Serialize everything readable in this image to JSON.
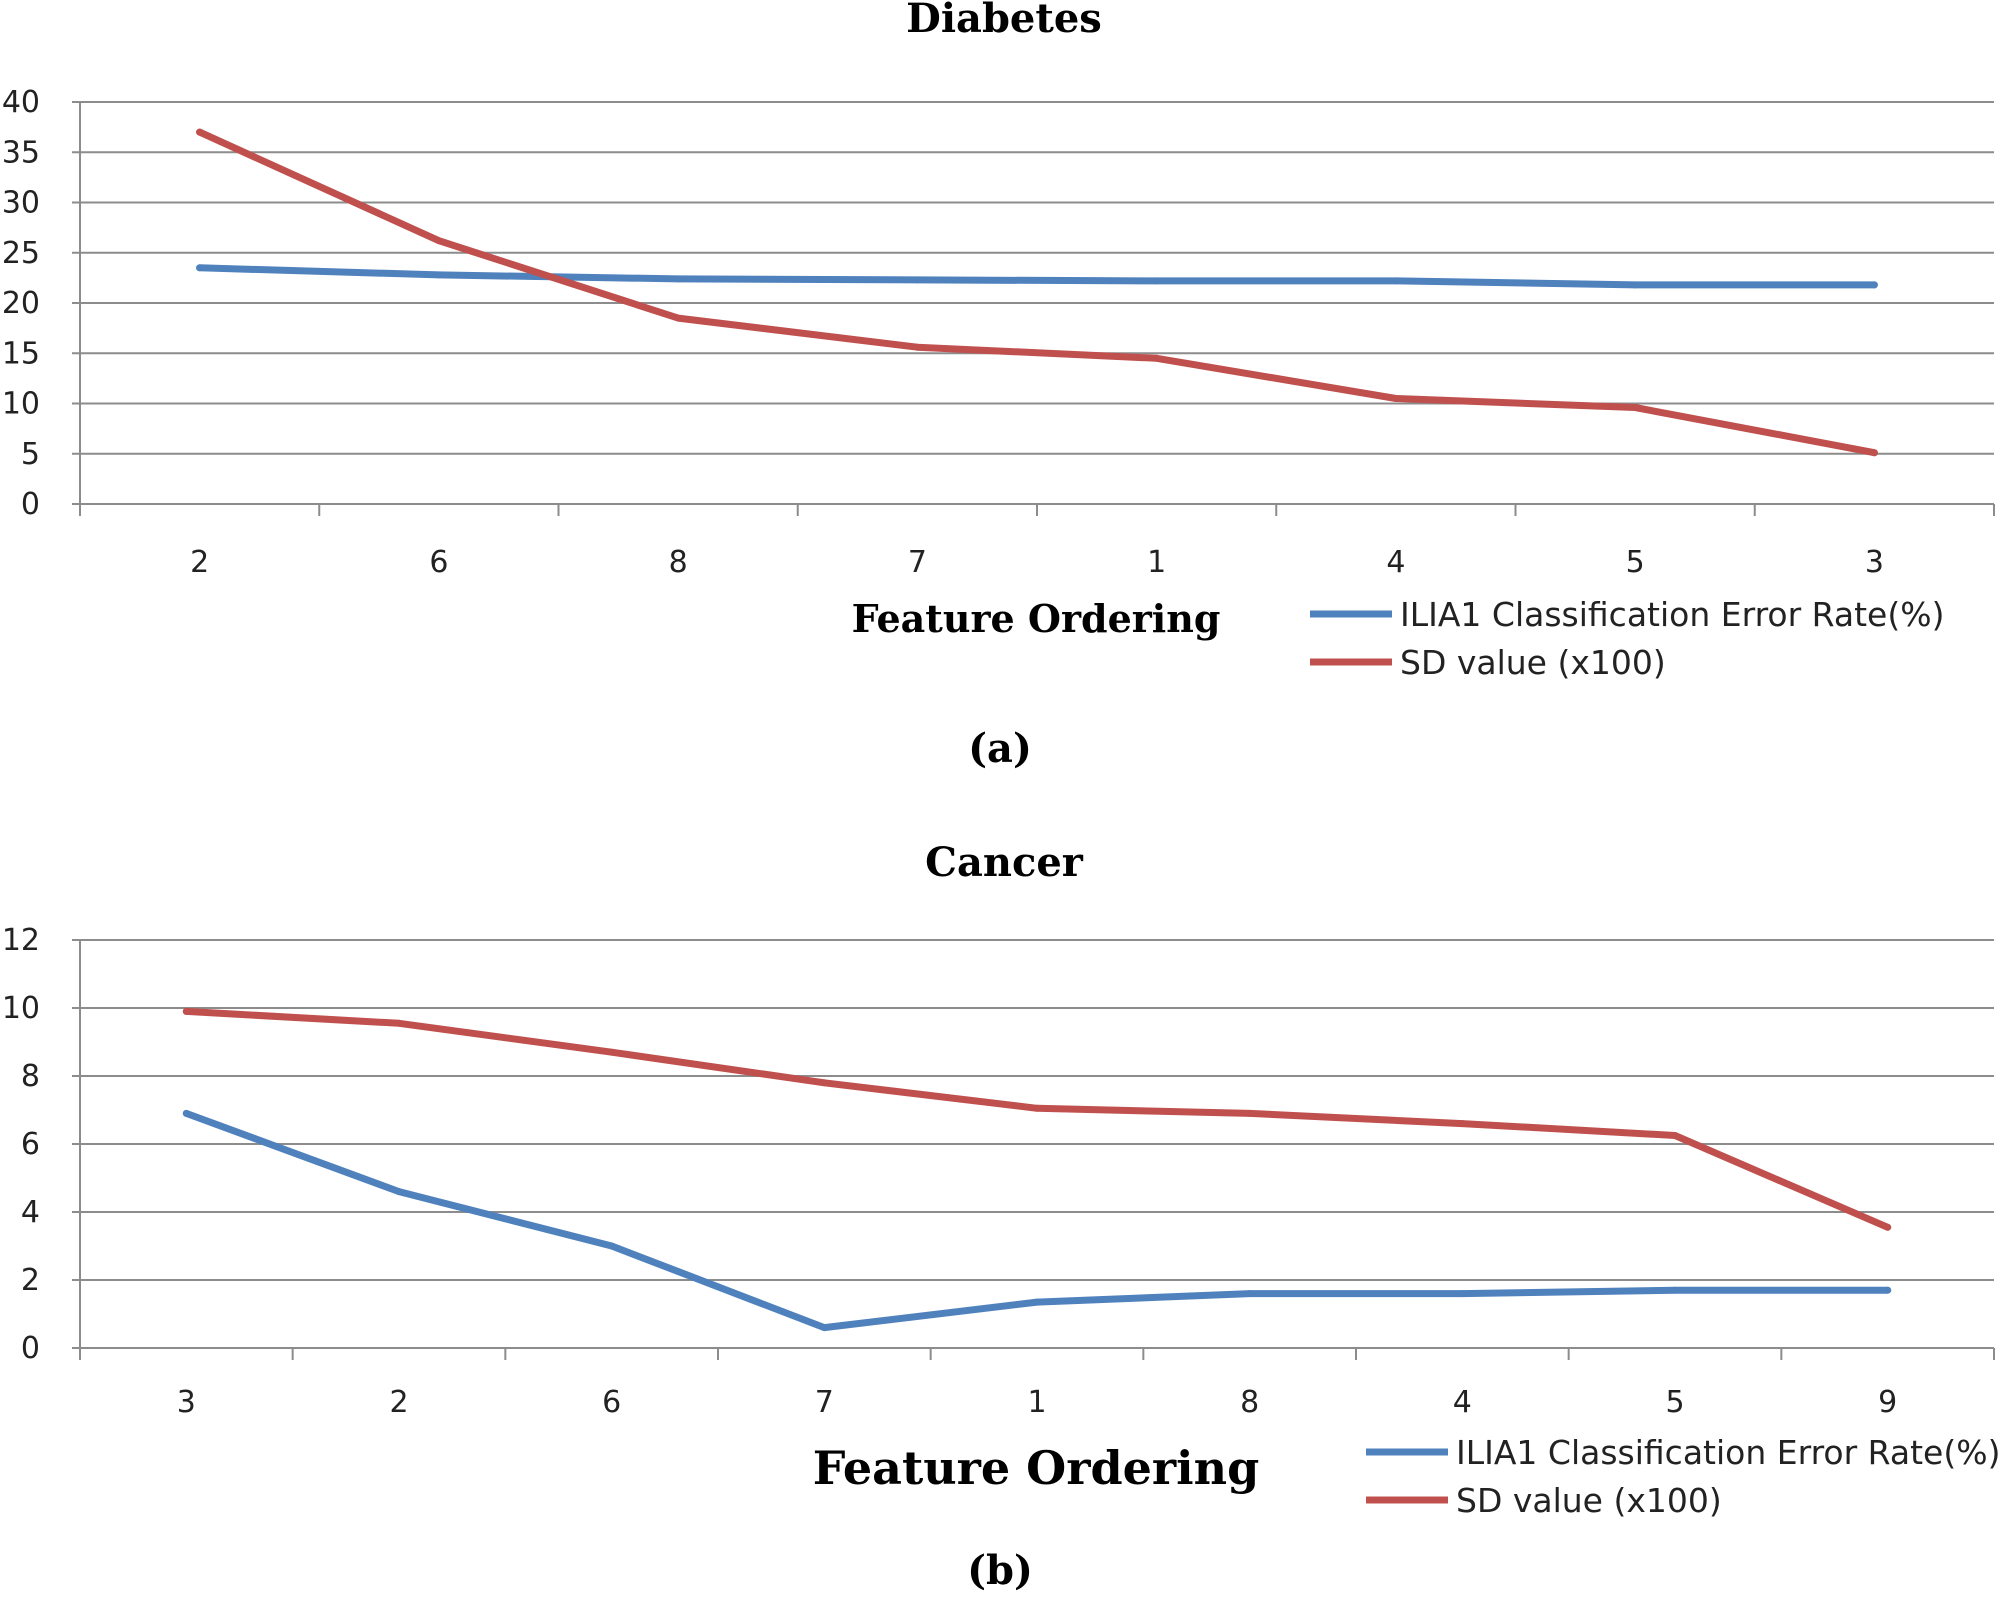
{
  "chart_data": [
    {
      "type": "line",
      "title": "Diabetes",
      "xlabel": "Feature Ordering",
      "ylabel": "",
      "categories": [
        "2",
        "6",
        "8",
        "7",
        "1",
        "4",
        "5",
        "3"
      ],
      "ylim": [
        0,
        40
      ],
      "yticks": [
        0,
        5,
        10,
        15,
        20,
        25,
        30,
        35,
        40
      ],
      "grid": true,
      "legend_position": "bottom-right",
      "caption": "(a)",
      "series": [
        {
          "name": "ILIA1 Classification Error Rate(%)",
          "color": "#4f81bd",
          "values": [
            23.5,
            22.8,
            22.4,
            22.3,
            22.2,
            22.2,
            21.8,
            21.8
          ]
        },
        {
          "name": "SD value (x100)",
          "color": "#c0504d",
          "values": [
            37.0,
            26.2,
            18.5,
            15.6,
            14.5,
            10.5,
            9.6,
            5.1
          ]
        }
      ]
    },
    {
      "type": "line",
      "title": "Cancer",
      "xlabel": "Feature Ordering",
      "ylabel": "",
      "categories": [
        "3",
        "2",
        "6",
        "7",
        "1",
        "8",
        "4",
        "5",
        "9"
      ],
      "ylim": [
        0,
        12
      ],
      "yticks": [
        0,
        2,
        4,
        6,
        8,
        10,
        12
      ],
      "grid": true,
      "legend_position": "bottom-right",
      "caption": "(b)",
      "series": [
        {
          "name": "ILIA1 Classification Error Rate(%)",
          "color": "#4f81bd",
          "values": [
            6.9,
            4.6,
            3.0,
            0.6,
            1.35,
            1.6,
            1.6,
            1.7,
            1.7
          ]
        },
        {
          "name": "SD value (x100)",
          "color": "#c0504d",
          "values": [
            9.9,
            9.55,
            8.7,
            7.8,
            7.05,
            6.9,
            6.6,
            6.25,
            3.55
          ]
        }
      ]
    }
  ]
}
